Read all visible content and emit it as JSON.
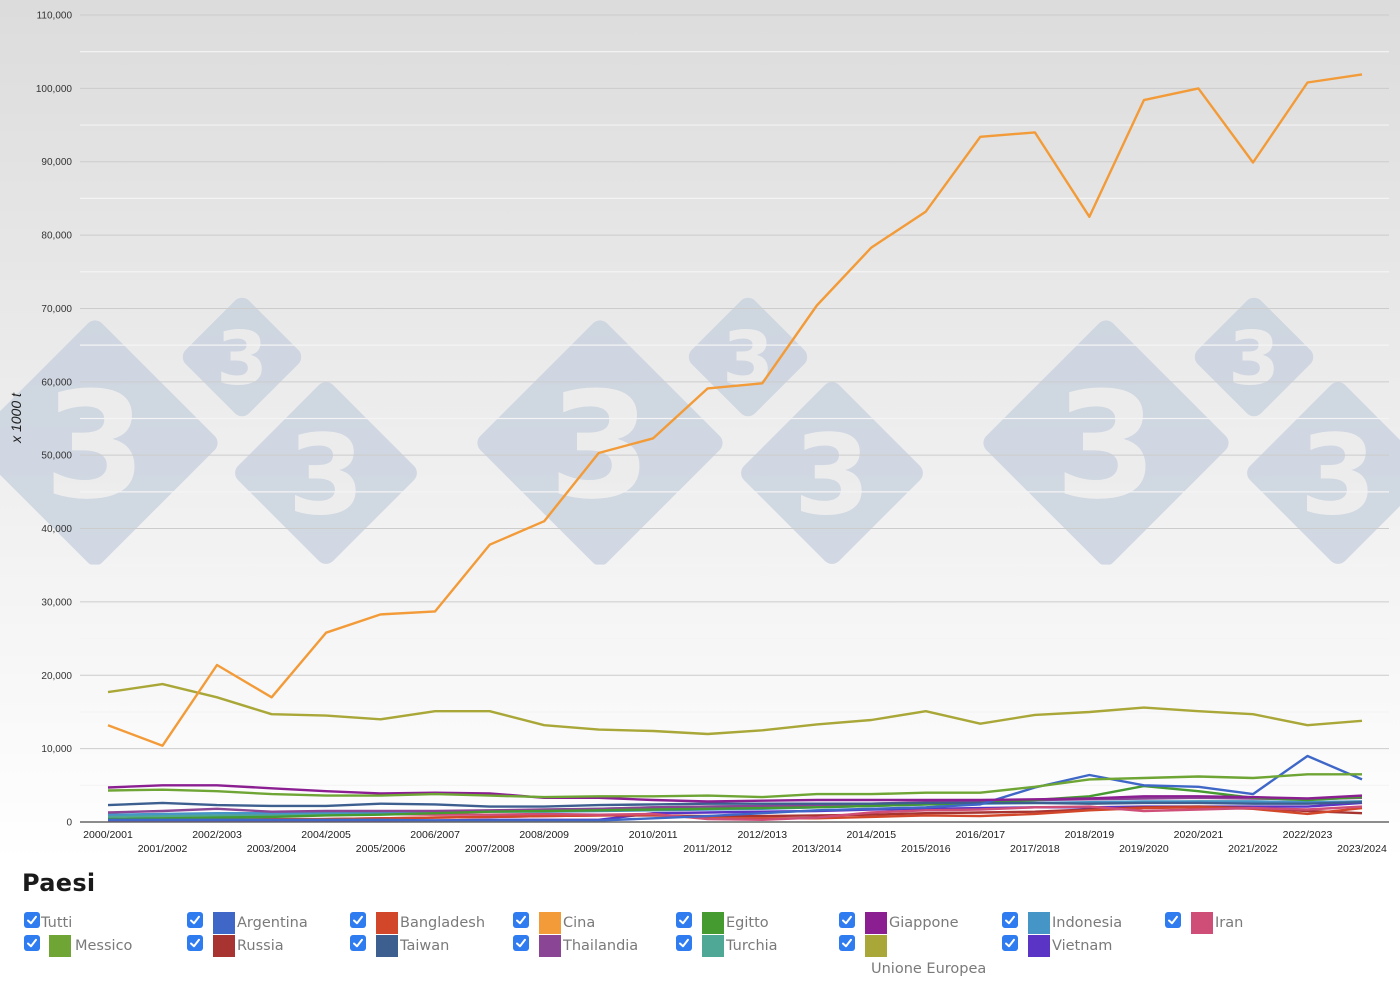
{
  "chart_data": {
    "type": "line",
    "title": "",
    "xlabel": "",
    "ylabel": "x 1000 t",
    "ylim": [
      0,
      110000
    ],
    "yticks": [
      0,
      10000,
      20000,
      30000,
      40000,
      50000,
      60000,
      70000,
      80000,
      90000,
      100000,
      110000
    ],
    "ytick_labels": [
      "0",
      "10,000",
      "20,000",
      "30,000",
      "40,000",
      "50,000",
      "60,000",
      "70,000",
      "80,000",
      "90,000",
      "100,000",
      "110,000"
    ],
    "grid": true,
    "legend_position": "bottom",
    "categories": [
      "2000/2001",
      "2001/2002",
      "2002/2003",
      "2003/2004",
      "2004/2005",
      "2005/2006",
      "2006/2007",
      "2007/2008",
      "2008/2009",
      "2009/2010",
      "2010/2011",
      "2011/2012",
      "2012/2013",
      "2013/2014",
      "2014/2015",
      "2015/2016",
      "2016/2017",
      "2017/2018",
      "2018/2019",
      "2019/2020",
      "2020/2021",
      "2021/2022",
      "2022/2023",
      "2023/2024"
    ],
    "series": [
      {
        "name": "Argentina",
        "color": "#3f67c7",
        "values": [
          300,
          300,
          300,
          300,
          300,
          300,
          200,
          200,
          200,
          200,
          500,
          800,
          1200,
          1600,
          1800,
          2000,
          2400,
          4700,
          6400,
          5000,
          4800,
          3800,
          9000,
          5800
        ]
      },
      {
        "name": "Bangladesh",
        "color": "#d2472a",
        "values": [
          300,
          300,
          300,
          400,
          400,
          500,
          600,
          700,
          800,
          900,
          1000,
          500,
          500,
          500,
          700,
          900,
          800,
          1100,
          1600,
          1900,
          2000,
          1800,
          1100,
          1900
        ]
      },
      {
        "name": "Cina",
        "color": "#f29b38",
        "values": [
          13200,
          10400,
          21400,
          17000,
          25800,
          28300,
          28700,
          37800,
          41000,
          50300,
          52300,
          59100,
          59800,
          70400,
          78300,
          83200,
          93400,
          94000,
          82500,
          98400,
          100000,
          89900,
          100800,
          101900
        ]
      },
      {
        "name": "Egitto",
        "color": "#459a30",
        "values": [
          400,
          500,
          600,
          700,
          900,
          1000,
          1200,
          1400,
          1500,
          1600,
          1700,
          1800,
          1900,
          2000,
          2200,
          2400,
          2600,
          3000,
          3500,
          4900,
          4200,
          3300,
          3000,
          3400
        ]
      },
      {
        "name": "Giappone",
        "color": "#8b1f92",
        "values": [
          4700,
          5000,
          5000,
          4600,
          4200,
          3900,
          4000,
          3900,
          3300,
          3300,
          3000,
          2800,
          2900,
          3000,
          3000,
          3000,
          3000,
          3100,
          3200,
          3500,
          3500,
          3400,
          3200,
          3600
        ]
      },
      {
        "name": "Indonesia",
        "color": "#4596c6",
        "values": [
          1000,
          1100,
          1200,
          1200,
          1300,
          1300,
          1300,
          1400,
          1400,
          1500,
          1600,
          1700,
          1800,
          2000,
          2200,
          2400,
          2500,
          2600,
          2700,
          2800,
          2800,
          2800,
          2700,
          2800
        ]
      },
      {
        "name": "Iran",
        "color": "#cf4e77",
        "values": [
          800,
          800,
          900,
          1000,
          1100,
          1100,
          1000,
          1000,
          1100,
          1000,
          1100,
          400,
          300,
          600,
          1300,
          1600,
          1700,
          2000,
          2100,
          1500,
          1700,
          1900,
          1700,
          2100
        ]
      },
      {
        "name": "Messico",
        "color": "#6ea534",
        "values": [
          4300,
          4400,
          4200,
          3800,
          3600,
          3600,
          3800,
          3600,
          3400,
          3500,
          3500,
          3600,
          3400,
          3800,
          3800,
          4000,
          4000,
          4800,
          5800,
          6000,
          6200,
          6000,
          6500,
          6500
        ]
      },
      {
        "name": "Russia",
        "color": "#a83432",
        "values": [
          300,
          300,
          300,
          300,
          400,
          500,
          600,
          700,
          800,
          900,
          900,
          800,
          800,
          900,
          1000,
          1200,
          1300,
          1400,
          1700,
          2000,
          2100,
          1900,
          1500,
          1200
        ]
      },
      {
        "name": "Taiwan",
        "color": "#3c5f90",
        "values": [
          2300,
          2600,
          2300,
          2200,
          2200,
          2500,
          2400,
          2100,
          2100,
          2300,
          2400,
          2500,
          2500,
          2500,
          2500,
          2600,
          2600,
          2600,
          2500,
          2600,
          2600,
          2500,
          2500,
          2700
        ]
      },
      {
        "name": "Thailandia",
        "color": "#8b4595",
        "values": [
          1300,
          1500,
          1800,
          1400,
          1500,
          1500,
          1500,
          1600,
          1700,
          1800,
          2000,
          2100,
          2200,
          2300,
          2500,
          2700,
          2800,
          3000,
          3100,
          3200,
          3300,
          3200,
          3100,
          3300
        ]
      },
      {
        "name": "Turchia",
        "color": "#4fa896",
        "values": [
          700,
          800,
          900,
          900,
          1100,
          1200,
          1300,
          1500,
          1600,
          1800,
          2000,
          2100,
          2200,
          2300,
          2400,
          2500,
          2600,
          2600,
          2600,
          2700,
          2800,
          2800,
          2700,
          2800
        ]
      },
      {
        "name": "Unione Europea",
        "color": "#a9a737",
        "values": [
          17700,
          18800,
          17000,
          14700,
          14500,
          14000,
          15100,
          15100,
          13200,
          12600,
          12400,
          12000,
          12500,
          13300,
          13900,
          15100,
          13400,
          14600,
          15000,
          15600,
          15100,
          14700,
          13200,
          13800
        ]
      },
      {
        "name": "Vietnam",
        "color": "#5a34c4",
        "values": [
          200,
          200,
          200,
          200,
          200,
          200,
          200,
          300,
          300,
          300,
          1200,
          1300,
          1400,
          1500,
          1700,
          1800,
          1900,
          2000,
          2000,
          2100,
          2100,
          2100,
          2100,
          2600
        ]
      }
    ]
  },
  "legend": {
    "title": "Paesi",
    "all_label": "Tutti",
    "items": [
      {
        "label": "Argentina",
        "color": "#3f67c7",
        "checked": true
      },
      {
        "label": "Bangladesh",
        "color": "#d2472a",
        "checked": true
      },
      {
        "label": "Cina",
        "color": "#f29b38",
        "checked": true
      },
      {
        "label": "Egitto",
        "color": "#459a30",
        "checked": true
      },
      {
        "label": "Giappone",
        "color": "#8b1f92",
        "checked": true
      },
      {
        "label": "Indonesia",
        "color": "#4596c6",
        "checked": true
      },
      {
        "label": "Iran",
        "color": "#cf4e77",
        "checked": true
      },
      {
        "label": "Messico",
        "color": "#6ea534",
        "checked": true
      },
      {
        "label": "Russia",
        "color": "#a83432",
        "checked": true
      },
      {
        "label": "Taiwan",
        "color": "#3c5f90",
        "checked": true
      },
      {
        "label": "Thailandia",
        "color": "#8b4595",
        "checked": true
      },
      {
        "label": "Turchia",
        "color": "#4fa896",
        "checked": true
      },
      {
        "label": "Unione Europea",
        "color": "#a9a737",
        "checked": true
      },
      {
        "label": "Vietnam",
        "color": "#5a34c4",
        "checked": true
      }
    ]
  },
  "watermark": {
    "glyph": "3",
    "color": "#c6d0de"
  },
  "colors": {
    "checkbox": "#2f7bf0",
    "grid_major": "#cfcfcf",
    "grid_minor": "#f2f2f2",
    "axis": "#666666"
  }
}
